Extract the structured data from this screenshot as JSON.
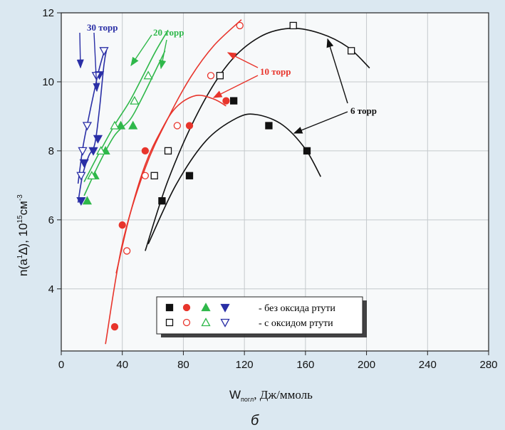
{
  "chart_data": {
    "type": "scatter",
    "xlabel_main": "W",
    "xlabel_sub": "погл",
    "xlabel_unit": ", Дж/ммоль",
    "ylabel_main": "n(a",
    "ylabel_sup1": "1",
    "ylabel_delta": "∆), 10",
    "ylabel_sup2": "15",
    "ylabel_unit": "см",
    "ylabel_sup3": "-3",
    "caption": "б",
    "xlim": [
      0,
      280
    ],
    "ylim": [
      2.2,
      12
    ],
    "xticks": [
      0,
      40,
      80,
      120,
      160,
      200,
      240,
      280
    ],
    "yticks": [
      4,
      6,
      8,
      10,
      12
    ],
    "grid": true,
    "legend": {
      "placement": "bottom-center",
      "row1": "- без оксида ртути",
      "row2": "- с оксидом ртути"
    },
    "annotations": [
      {
        "text": "30 торр",
        "color": "#2a2fa6"
      },
      {
        "text": "20 торр",
        "color": "#2fb84a"
      },
      {
        "text": "10 торр",
        "color": "#e8352c"
      },
      {
        "text": "6 торр",
        "color": "#111111"
      }
    ],
    "series": [
      {
        "pressure": "6 торр",
        "color": "#111111",
        "marker": "square",
        "filled": [
          [
            66,
            6.55
          ],
          [
            84,
            7.28
          ],
          [
            113,
            9.45
          ],
          [
            136,
            8.73
          ],
          [
            161,
            8.0
          ]
        ],
        "open": [
          [
            61,
            7.28
          ],
          [
            70,
            8.0
          ],
          [
            104,
            10.18
          ],
          [
            152,
            11.63
          ],
          [
            190,
            10.9
          ]
        ],
        "curve_filled": [
          [
            57,
            5.3
          ],
          [
            75,
            7.0
          ],
          [
            95,
            8.3
          ],
          [
            115,
            8.95
          ],
          [
            128,
            9.05
          ],
          [
            145,
            8.75
          ],
          [
            160,
            8.05
          ],
          [
            170,
            7.25
          ]
        ],
        "curve_open": [
          [
            55,
            5.1
          ],
          [
            70,
            7.15
          ],
          [
            90,
            9.15
          ],
          [
            110,
            10.55
          ],
          [
            130,
            11.3
          ],
          [
            150,
            11.55
          ],
          [
            170,
            11.4
          ],
          [
            188,
            11.0
          ],
          [
            202,
            10.4
          ]
        ]
      },
      {
        "pressure": "10 торр",
        "color": "#e8352c",
        "marker": "circle",
        "filled": [
          [
            35,
            2.9
          ],
          [
            40,
            5.85
          ],
          [
            55,
            8.0
          ],
          [
            84,
            8.73
          ],
          [
            108,
            9.45
          ]
        ],
        "open": [
          [
            43,
            5.1
          ],
          [
            55,
            7.28
          ],
          [
            76,
            8.73
          ],
          [
            98,
            10.18
          ],
          [
            117,
            11.63
          ]
        ],
        "curve_filled": [
          [
            36,
            4.45
          ],
          [
            45,
            6.15
          ],
          [
            55,
            7.6
          ],
          [
            65,
            8.55
          ],
          [
            75,
            9.25
          ],
          [
            88,
            9.6
          ],
          [
            100,
            9.5
          ],
          [
            108,
            9.3
          ]
        ],
        "curve_open": [
          [
            29,
            2.4
          ],
          [
            40,
            5.3
          ],
          [
            55,
            7.5
          ],
          [
            70,
            8.95
          ],
          [
            85,
            10.15
          ],
          [
            100,
            11.05
          ],
          [
            118,
            11.8
          ]
        ]
      },
      {
        "pressure": "20 торр",
        "color": "#2fb84a",
        "marker": "triangle-up",
        "filled": [
          [
            17,
            6.55
          ],
          [
            22,
            7.28
          ],
          [
            29,
            8.0
          ],
          [
            39,
            8.73
          ],
          [
            47,
            8.73
          ]
        ],
        "open": [
          [
            20,
            7.28
          ],
          [
            26,
            8.0
          ],
          [
            35,
            8.73
          ],
          [
            48,
            9.45
          ],
          [
            57,
            10.18
          ]
        ],
        "curve_filled": [
          [
            15,
            6.7
          ],
          [
            25,
            7.65
          ],
          [
            35,
            8.45
          ],
          [
            45,
            8.9
          ],
          [
            52,
            9.45
          ],
          [
            62,
            10.35
          ],
          [
            68,
            10.9
          ]
        ],
        "curve_open": [
          [
            15,
            7.1
          ],
          [
            25,
            7.95
          ],
          [
            35,
            8.75
          ],
          [
            45,
            9.45
          ],
          [
            55,
            10.3
          ],
          [
            62,
            10.9
          ],
          [
            70,
            11.5
          ]
        ]
      },
      {
        "pressure": "30 торр",
        "color": "#2a2fa6",
        "marker": "triangle-down",
        "filled": [
          [
            13,
            6.55
          ],
          [
            15,
            7.65
          ],
          [
            21,
            8.0
          ],
          [
            24,
            8.35
          ],
          [
            25,
            10.2
          ]
        ],
        "open": [
          [
            13,
            7.28
          ],
          [
            14,
            8.0
          ],
          [
            17,
            8.73
          ],
          [
            23,
            10.18
          ],
          [
            28,
            10.9
          ]
        ],
        "curve_filled": [
          [
            11,
            6.5
          ],
          [
            14,
            7.3
          ],
          [
            18,
            7.85
          ],
          [
            22,
            8.2
          ],
          [
            25,
            9.2
          ],
          [
            28,
            10.5
          ],
          [
            30,
            11.0
          ]
        ],
        "curve_open": [
          [
            11,
            7.05
          ],
          [
            14,
            8.05
          ],
          [
            17,
            8.75
          ],
          [
            21,
            9.6
          ],
          [
            25,
            10.4
          ],
          [
            29,
            11.0
          ]
        ]
      }
    ]
  }
}
